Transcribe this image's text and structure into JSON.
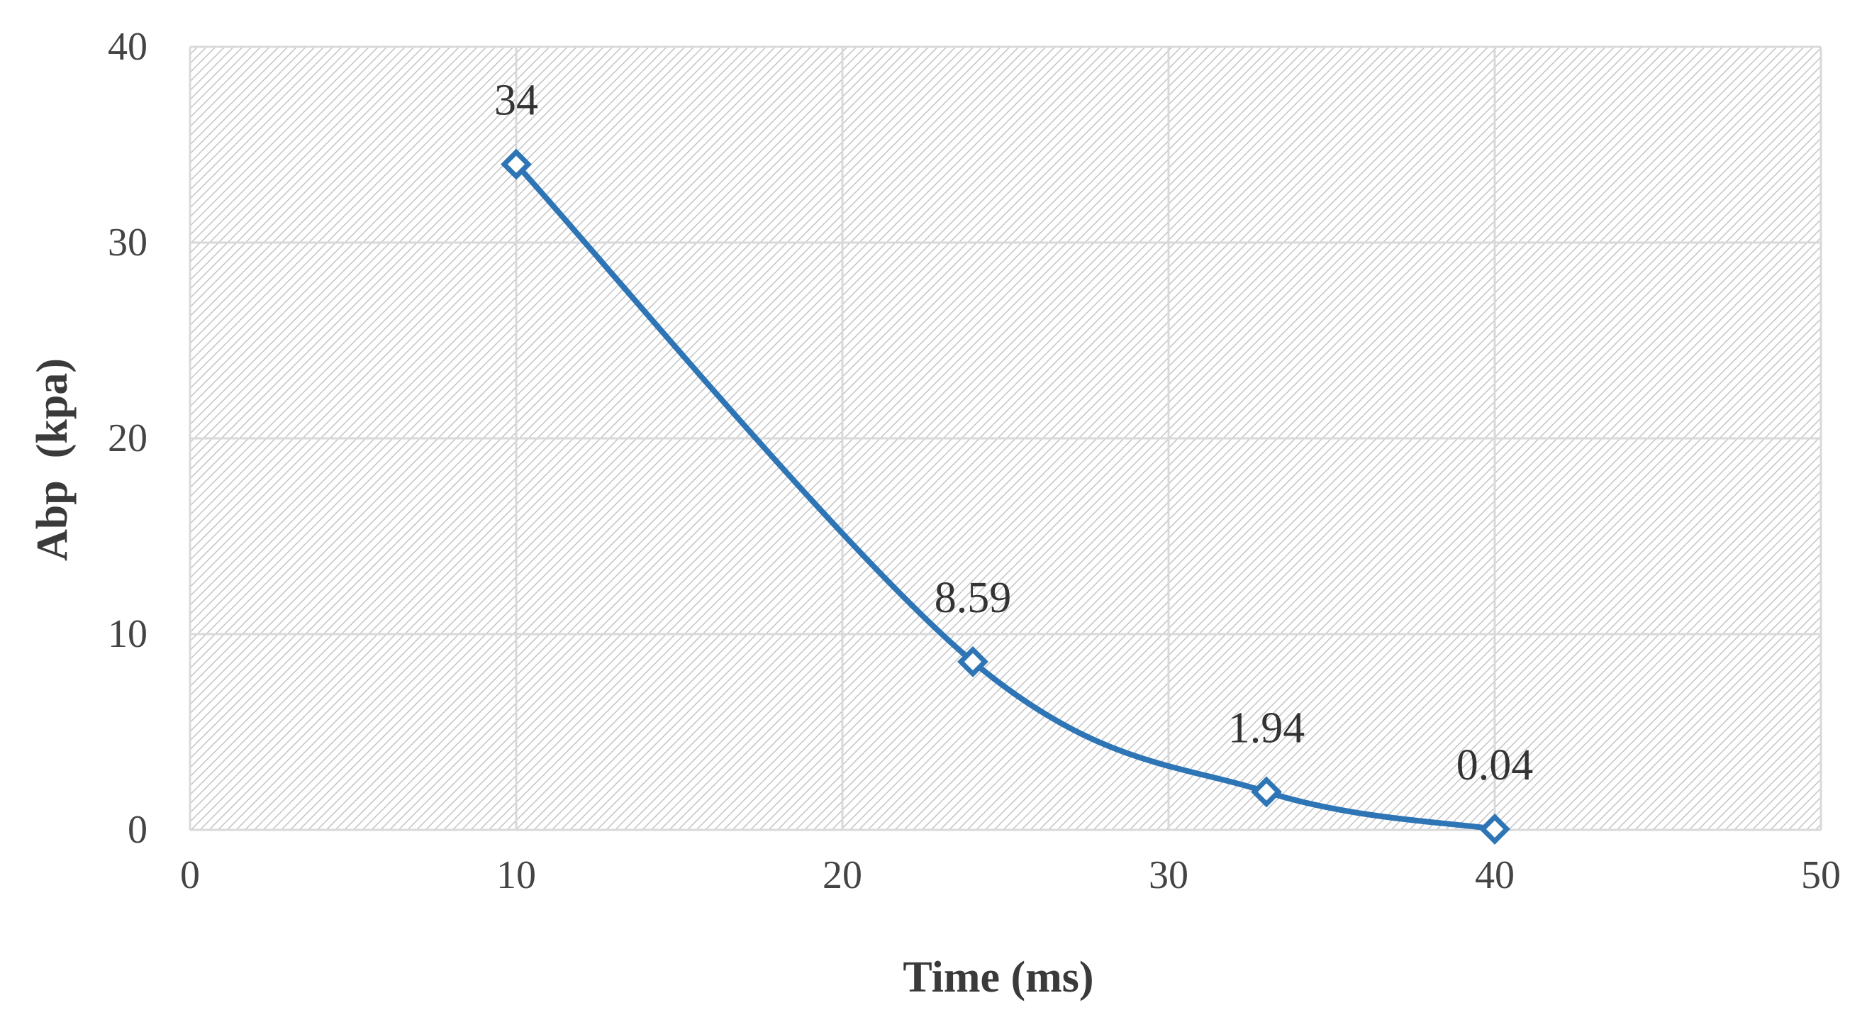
{
  "chart_data": {
    "type": "scatter",
    "title": "",
    "xlabel": "Time (ms)",
    "ylabel": "Abp  (kpa)",
    "xlim": [
      0,
      50
    ],
    "ylim": [
      0,
      40
    ],
    "x_ticks": [
      "0",
      "10",
      "20",
      "30",
      "40",
      "50"
    ],
    "y_ticks": [
      "0",
      "10",
      "20",
      "30",
      "40"
    ],
    "grid": true,
    "legend": "none",
    "line_style": "smoothed",
    "marker": "diamond",
    "colors": {
      "series": "#2E75B6",
      "grid": "#d9d9d9",
      "hatch": "#c4c4c4"
    },
    "series": [
      {
        "x": [
          10,
          24,
          33,
          40
        ],
        "y": [
          34,
          8.59,
          1.94,
          0.04
        ],
        "labels": [
          "34",
          "8.59",
          "1.94",
          "0.04"
        ]
      }
    ]
  }
}
